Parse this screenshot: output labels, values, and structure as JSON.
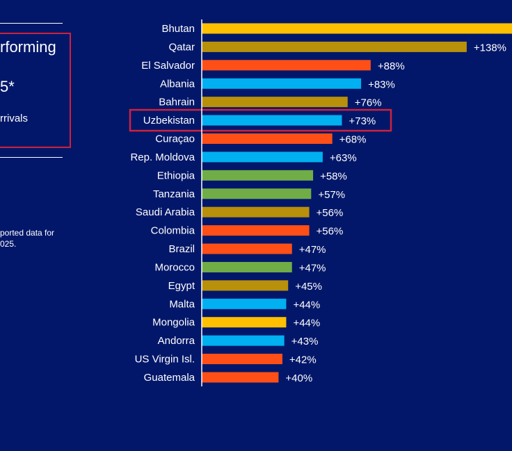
{
  "side_panel": {
    "title_fragment": "rforming",
    "year_fragment": "5*",
    "subtitle_fragment": "rrivals",
    "note_line1": "ported data for",
    "note_line2": "025."
  },
  "chart_data": {
    "type": "bar",
    "orientation": "horizontal",
    "categories": [
      "Bhutan",
      "Qatar",
      "El Salvador",
      "Albania",
      "Bahrain",
      "Uzbekistan",
      "Curaçao",
      "Rep. Moldova",
      "Ethiopia",
      "Tanzania",
      "Saudi Arabia",
      "Colombia",
      "Brazil",
      "Morocco",
      "Egypt",
      "Malta",
      "Mongolia",
      "Andorra",
      "US Virgin Isl.",
      "Guatemala"
    ],
    "values": [
      null,
      138,
      88,
      83,
      76,
      73,
      68,
      63,
      58,
      57,
      56,
      56,
      47,
      47,
      45,
      44,
      44,
      43,
      42,
      40
    ],
    "labels": [
      "",
      "+138%",
      "+88%",
      "+83%",
      "+76%",
      "+73%",
      "+68%",
      "+63%",
      "+58%",
      "+57%",
      "+56%",
      "+56%",
      "+47%",
      "+47%",
      "+45%",
      "+44%",
      "+44%",
      "+43%",
      "+42%",
      "+40%"
    ],
    "colors": [
      "#ffc000",
      "#b8900a",
      "#ff4f17",
      "#00b0f0",
      "#b8900a",
      "#00b0f0",
      "#ff4f17",
      "#00b0f0",
      "#70ad47",
      "#70ad47",
      "#b8900a",
      "#ff4f17",
      "#ff4f17",
      "#70ad47",
      "#b8900a",
      "#00b0f0",
      "#ffc000",
      "#00b0f0",
      "#ff4f17",
      "#ff4f17"
    ],
    "highlighted": "Uzbekistan",
    "highlight_color": "#d0213a",
    "background": "#03176a"
  }
}
